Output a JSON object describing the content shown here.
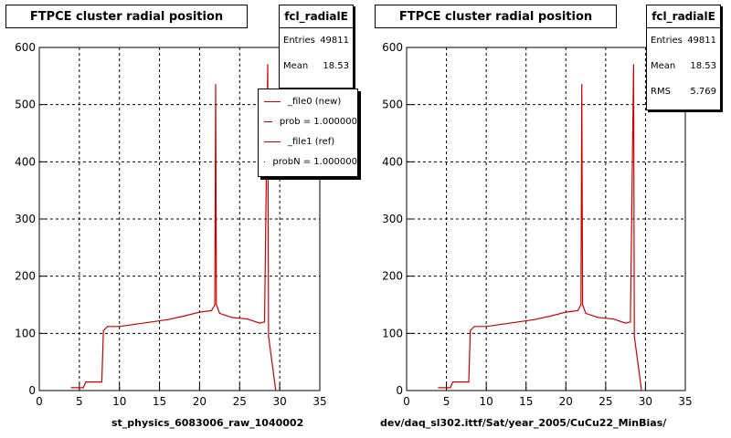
{
  "chart_data": [
    {
      "type": "histogram",
      "title": "FTPCE cluster radial position",
      "xlabel": "st_physics_6083006_raw_1040002",
      "xlim": [
        0,
        35
      ],
      "ylim": [
        0,
        600
      ],
      "xticks": [
        0,
        5,
        10,
        15,
        20,
        25,
        30,
        35
      ],
      "yticks": [
        0,
        100,
        200,
        300,
        400,
        500,
        600
      ],
      "grid": true,
      "stats": {
        "name": "fcl_radialE",
        "rows": [
          {
            "label": "Entries",
            "value": "49811"
          },
          {
            "label": "Mean",
            "value": "18.53"
          }
        ]
      },
      "legend": [
        "_file0 (new)",
        "prob = 1.000000",
        "_file1 (ref)",
        "probN = 1.000000"
      ],
      "series": [
        {
          "x": [
            4,
            5.5,
            5.8,
            7.8,
            8,
            8.5,
            10,
            12,
            14,
            16,
            18,
            20,
            21.5,
            21.9,
            22.0,
            22.1,
            22.5,
            24,
            26,
            27.5,
            28.1,
            28.5,
            28.6,
            29.5
          ],
          "y": [
            5,
            5,
            15,
            15,
            105,
            112,
            112,
            116,
            120,
            124,
            130,
            137,
            140,
            150,
            535,
            150,
            135,
            128,
            125,
            118,
            120,
            570,
            95,
            0
          ]
        }
      ]
    },
    {
      "type": "histogram",
      "title": "FTPCE cluster radial position",
      "xlabel": "dev/daq_sl302.ittf/Sat/year_2005/CuCu22_MinBias/",
      "xlim": [
        0,
        35
      ],
      "ylim": [
        0,
        600
      ],
      "xticks": [
        0,
        5,
        10,
        15,
        20,
        25,
        30,
        35
      ],
      "yticks": [
        0,
        100,
        200,
        300,
        400,
        500,
        600
      ],
      "grid": true,
      "stats": {
        "name": "fcl_radialE",
        "rows": [
          {
            "label": "Entries",
            "value": "49811"
          },
          {
            "label": "Mean",
            "value": "18.53"
          },
          {
            "label": "RMS",
            "value": "5.769"
          }
        ]
      },
      "series": [
        {
          "x": [
            4,
            5.5,
            5.8,
            7.8,
            8,
            8.5,
            10,
            12,
            14,
            16,
            18,
            20,
            21.5,
            21.9,
            22.0,
            22.1,
            22.5,
            24,
            26,
            27.5,
            28.1,
            28.5,
            28.6,
            29.5
          ],
          "y": [
            5,
            5,
            15,
            15,
            105,
            112,
            112,
            116,
            120,
            124,
            130,
            137,
            140,
            150,
            535,
            150,
            135,
            128,
            125,
            118,
            120,
            570,
            95,
            0
          ]
        }
      ]
    }
  ],
  "ui": {
    "line_color": "#cc0000",
    "grid_color": "#000000"
  }
}
